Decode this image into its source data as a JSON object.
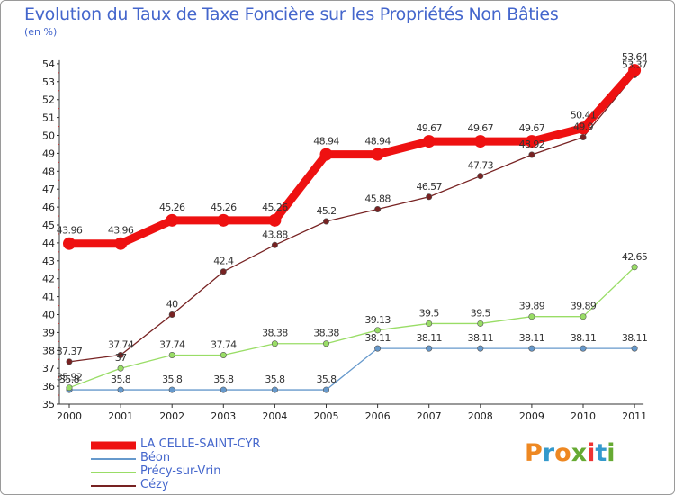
{
  "chart_data": {
    "type": "line",
    "title": "Evolution du Taux de Taxe Foncière sur les Propriétés Non Bâties",
    "unit_label": "(en %)",
    "xlabel": "",
    "ylabel": "",
    "ylim": [
      35,
      54
    ],
    "yticks": [
      "35",
      "36",
      "37",
      "38",
      "39",
      "40",
      "41",
      "42",
      "43",
      "44",
      "45",
      "46",
      "47",
      "48",
      "49",
      "50",
      "51",
      "52",
      "53",
      "54"
    ],
    "categories": [
      "2000",
      "2001",
      "2002",
      "2003",
      "2004",
      "2005",
      "2006",
      "2007",
      "2008",
      "2009",
      "2010",
      "2011"
    ],
    "series": [
      {
        "name": "LA CELLE-SAINT-CYR",
        "color": "#ee1111",
        "values": [
          43.96,
          43.96,
          45.26,
          45.26,
          45.26,
          48.94,
          48.94,
          49.67,
          49.67,
          49.67,
          50.41,
          53.64
        ],
        "labels": [
          "43.96",
          "43.96",
          "45.26",
          "45.26",
          "45.26",
          "48.94",
          "48.94",
          "49.67",
          "49.67",
          "49.67",
          "50.41",
          "53.64"
        ]
      },
      {
        "name": "Béon",
        "color": "#6699cc",
        "values": [
          35.8,
          35.8,
          35.8,
          35.8,
          35.8,
          35.8,
          38.11,
          38.11,
          38.11,
          38.11,
          38.11,
          38.11
        ],
        "labels": [
          "35.8",
          "35.8",
          "35.8",
          "35.8",
          "35.8",
          "35.8",
          "38.11",
          "38.11",
          "38.11",
          "38.11",
          "38.11",
          "38.11"
        ]
      },
      {
        "name": "Précy-sur-Vrin",
        "color": "#99dd66",
        "values": [
          35.92,
          37,
          37.74,
          37.74,
          38.38,
          38.38,
          39.13,
          39.5,
          39.5,
          39.89,
          39.89,
          42.65
        ],
        "labels": [
          "35.92",
          "37",
          "37.74",
          "37.74",
          "38.38",
          "38.38",
          "39.13",
          "39.5",
          "39.5",
          "39.89",
          "39.89",
          "42.65"
        ]
      },
      {
        "name": "Cézy",
        "color": "#772222",
        "values": [
          37.37,
          37.74,
          40,
          42.4,
          43.88,
          45.2,
          45.88,
          46.57,
          47.73,
          48.92,
          49.9,
          53.37
        ],
        "labels": [
          "37.37",
          "37.74",
          "40",
          "42.4",
          "43.88",
          "45.2",
          "45.88",
          "46.57",
          "47.73",
          "48.92",
          "49.9",
          "53.37"
        ]
      }
    ],
    "legend_position": "bottom-left",
    "grid": false
  },
  "logo": {
    "text": "Proxiti",
    "colors": [
      "#ee8822",
      "#3399cc",
      "#ee8822",
      "#66aa33",
      "#ee3333",
      "#3399cc",
      "#66aa33"
    ]
  }
}
